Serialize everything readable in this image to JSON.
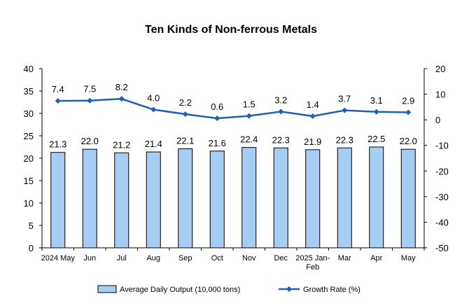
{
  "chart_data": {
    "type": "bar",
    "title": "Ten Kinds of Non-ferrous Metals",
    "categories": [
      [
        "2024 May"
      ],
      [
        "Jun"
      ],
      [
        "Jul"
      ],
      [
        "Aug"
      ],
      [
        "Sep"
      ],
      [
        "Oct"
      ],
      [
        "Nov"
      ],
      [
        "Dec"
      ],
      [
        "2025 Jan-",
        "Feb"
      ],
      [
        "Mar"
      ],
      [
        "Apr"
      ],
      [
        "May"
      ]
    ],
    "series": [
      {
        "name": "Average Daily Output (10,000 tons)",
        "kind": "bar",
        "axis": "left",
        "color": "#a6cdf3",
        "values": [
          21.3,
          22.0,
          21.2,
          21.4,
          22.1,
          21.6,
          22.4,
          22.3,
          21.9,
          22.3,
          22.5,
          22.0
        ],
        "labels": [
          "21.3",
          "22.0",
          "21.2",
          "21.4",
          "22.1",
          "21.6",
          "22.4",
          "22.3",
          "21.9",
          "22.3",
          "22.5",
          "22.0"
        ]
      },
      {
        "name": "Growth Rate (%)",
        "kind": "line",
        "axis": "right",
        "color": "#1f5fb5",
        "values": [
          7.4,
          7.5,
          8.2,
          4.0,
          2.2,
          0.6,
          1.5,
          3.2,
          1.4,
          3.7,
          3.1,
          2.9
        ],
        "labels": [
          "7.4",
          "7.5",
          "8.2",
          "4.0",
          "2.2",
          "0.6",
          "1.5",
          "3.2",
          "1.4",
          "3.7",
          "3.1",
          "2.9"
        ]
      }
    ],
    "y_left": {
      "min": 0,
      "max": 40,
      "ticks": [
        "0",
        "5",
        "10",
        "15",
        "20",
        "25",
        "30",
        "35",
        "40"
      ]
    },
    "y_right": {
      "min": -50,
      "max": 20,
      "ticks": [
        "-50",
        "-40",
        "-30",
        "-20",
        "-10",
        "0",
        "10",
        "20"
      ]
    },
    "grid": false,
    "legend_position": "bottom"
  }
}
